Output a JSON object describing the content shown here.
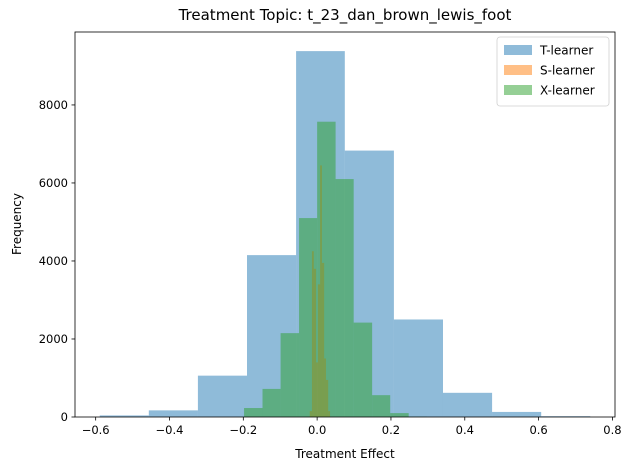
{
  "chart_data": {
    "type": "histogram",
    "title": "Treatment Topic: t_23_dan_brown_lewis_foot",
    "xlabel": "Treatment Effect",
    "ylabel": "Frequency",
    "xlim": [
      -0.656,
      0.807
    ],
    "ylim": [
      0,
      9870
    ],
    "x_ticks": [
      -0.6,
      -0.4,
      -0.2,
      0.0,
      0.2,
      0.4,
      0.6,
      0.8
    ],
    "x_tick_labels": [
      "−0.6",
      "−0.4",
      "−0.2",
      "0.0",
      "0.2",
      "0.4",
      "0.6",
      "0.8"
    ],
    "y_ticks": [
      0,
      2000,
      4000,
      6000,
      8000
    ],
    "y_tick_labels": [
      "0",
      "2000",
      "4000",
      "6000",
      "8000"
    ],
    "legend_position": "top-right",
    "alpha": 0.5,
    "series": [
      {
        "name": "T-learner",
        "color": "#1f77b4",
        "bins": [
          {
            "x0": -0.589,
            "x1": -0.456,
            "count": 40
          },
          {
            "x0": -0.456,
            "x1": -0.323,
            "count": 170
          },
          {
            "x0": -0.323,
            "x1": -0.19,
            "count": 1060
          },
          {
            "x0": -0.19,
            "x1": -0.057,
            "count": 4150
          },
          {
            "x0": -0.057,
            "x1": 0.075,
            "count": 9380
          },
          {
            "x0": 0.075,
            "x1": 0.208,
            "count": 6830
          },
          {
            "x0": 0.208,
            "x1": 0.341,
            "count": 2500
          },
          {
            "x0": 0.341,
            "x1": 0.474,
            "count": 620
          },
          {
            "x0": 0.474,
            "x1": 0.607,
            "count": 130
          },
          {
            "x0": 0.607,
            "x1": 0.74,
            "count": 20
          }
        ]
      },
      {
        "name": "S-learner",
        "color": "#ff7f0e",
        "bins": [
          {
            "x0": -0.02,
            "x1": -0.014,
            "count": 150
          },
          {
            "x0": -0.014,
            "x1": -0.009,
            "count": 4250
          },
          {
            "x0": -0.009,
            "x1": -0.003,
            "count": 3800
          },
          {
            "x0": -0.003,
            "x1": 0.002,
            "count": 1400
          },
          {
            "x0": 0.002,
            "x1": 0.008,
            "count": 3400
          },
          {
            "x0": 0.008,
            "x1": 0.013,
            "count": 6450
          },
          {
            "x0": 0.013,
            "x1": 0.019,
            "count": 3950
          },
          {
            "x0": 0.019,
            "x1": 0.024,
            "count": 1500
          },
          {
            "x0": 0.024,
            "x1": 0.03,
            "count": 950
          },
          {
            "x0": 0.03,
            "x1": 0.035,
            "count": 150
          }
        ]
      },
      {
        "name": "X-learner",
        "color": "#2ca02c",
        "bins": [
          {
            "x0": -0.198,
            "x1": -0.148,
            "count": 230
          },
          {
            "x0": -0.148,
            "x1": -0.099,
            "count": 720
          },
          {
            "x0": -0.099,
            "x1": -0.049,
            "count": 2150
          },
          {
            "x0": -0.049,
            "x1": 0.0,
            "count": 5100
          },
          {
            "x0": 0.0,
            "x1": 0.05,
            "count": 7570
          },
          {
            "x0": 0.05,
            "x1": 0.099,
            "count": 6100
          },
          {
            "x0": 0.099,
            "x1": 0.149,
            "count": 2420
          },
          {
            "x0": 0.149,
            "x1": 0.198,
            "count": 560
          },
          {
            "x0": 0.198,
            "x1": 0.248,
            "count": 100
          },
          {
            "x0": 0.248,
            "x1": 0.297,
            "count": 10
          }
        ]
      }
    ]
  }
}
